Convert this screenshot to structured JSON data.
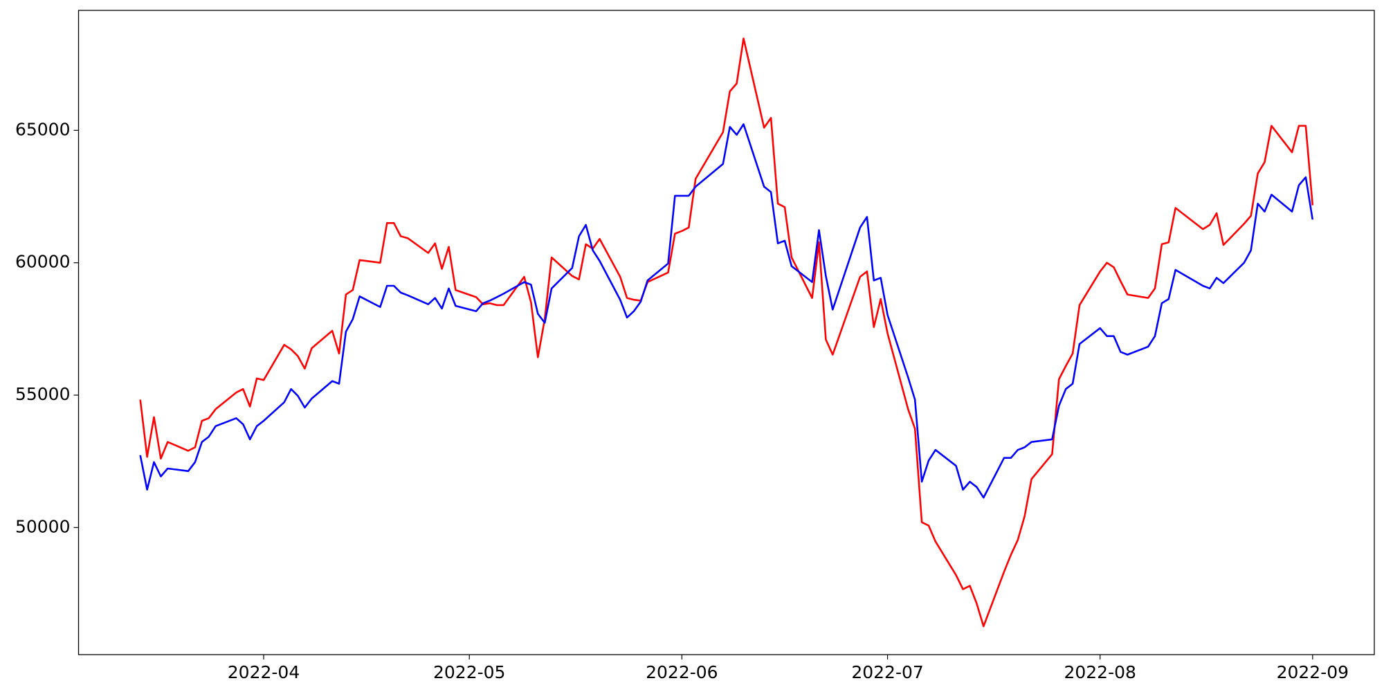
{
  "chart_data": {
    "type": "line",
    "x": [
      "2022-03-14",
      "2022-03-15",
      "2022-03-16",
      "2022-03-17",
      "2022-03-18",
      "2022-03-21",
      "2022-03-22",
      "2022-03-23",
      "2022-03-24",
      "2022-03-25",
      "2022-03-28",
      "2022-03-29",
      "2022-03-30",
      "2022-03-31",
      "2022-04-01",
      "2022-04-04",
      "2022-04-05",
      "2022-04-06",
      "2022-04-07",
      "2022-04-08",
      "2022-04-11",
      "2022-04-12",
      "2022-04-13",
      "2022-04-14",
      "2022-04-15",
      "2022-04-18",
      "2022-04-19",
      "2022-04-20",
      "2022-04-21",
      "2022-04-22",
      "2022-04-25",
      "2022-04-26",
      "2022-04-27",
      "2022-04-28",
      "2022-04-29",
      "2022-05-02",
      "2022-05-03",
      "2022-05-04",
      "2022-05-05",
      "2022-05-06",
      "2022-05-09",
      "2022-05-10",
      "2022-05-11",
      "2022-05-12",
      "2022-05-13",
      "2022-05-16",
      "2022-05-17",
      "2022-05-18",
      "2022-05-19",
      "2022-05-20",
      "2022-05-23",
      "2022-05-24",
      "2022-05-25",
      "2022-05-26",
      "2022-05-27",
      "2022-05-30",
      "2022-05-31",
      "2022-06-01",
      "2022-06-02",
      "2022-06-03",
      "2022-06-07",
      "2022-06-08",
      "2022-06-09",
      "2022-06-10",
      "2022-06-13",
      "2022-06-14",
      "2022-06-15",
      "2022-06-16",
      "2022-06-17",
      "2022-06-20",
      "2022-06-21",
      "2022-06-22",
      "2022-06-23",
      "2022-06-27",
      "2022-06-28",
      "2022-06-29",
      "2022-06-30",
      "2022-07-01",
      "2022-07-04",
      "2022-07-05",
      "2022-07-06",
      "2022-07-07",
      "2022-07-08",
      "2022-07-11",
      "2022-07-12",
      "2022-07-13",
      "2022-07-14",
      "2022-07-15",
      "2022-07-18",
      "2022-07-19",
      "2022-07-20",
      "2022-07-21",
      "2022-07-22",
      "2022-07-25",
      "2022-07-26",
      "2022-07-27",
      "2022-07-28",
      "2022-07-29",
      "2022-08-01",
      "2022-08-02",
      "2022-08-03",
      "2022-08-04",
      "2022-08-05",
      "2022-08-08",
      "2022-08-09",
      "2022-08-10",
      "2022-08-11",
      "2022-08-12",
      "2022-08-16",
      "2022-08-17",
      "2022-08-18",
      "2022-08-19",
      "2022-08-22",
      "2022-08-23",
      "2022-08-24",
      "2022-08-25",
      "2022-08-26",
      "2022-08-29",
      "2022-08-30",
      "2022-08-31",
      "2022-09-01"
    ],
    "series": [
      {
        "color": "#ff0000",
        "values": [
          54830,
          52670,
          54170,
          52600,
          53230,
          52900,
          53030,
          54030,
          54130,
          54470,
          55100,
          55230,
          54570,
          55630,
          55570,
          56900,
          56730,
          56470,
          56000,
          56770,
          57430,
          56570,
          58800,
          58970,
          60100,
          60000,
          61500,
          61500,
          61000,
          60930,
          60370,
          60730,
          59770,
          60600,
          58970,
          58700,
          58430,
          58470,
          58400,
          58400,
          59470,
          58500,
          56430,
          57870,
          60200,
          59500,
          59370,
          60700,
          60530,
          60900,
          59470,
          58670,
          58600,
          58570,
          59270,
          59630,
          61100,
          61200,
          61330,
          63170,
          64930,
          66470,
          66770,
          68470,
          65100,
          65470,
          62230,
          62100,
          60200,
          58670,
          60770,
          57100,
          56530,
          59470,
          59670,
          57570,
          58630,
          57330,
          54470,
          53730,
          50200,
          50070,
          49470,
          48200,
          47670,
          47800,
          47130,
          46270,
          48330,
          48970,
          49530,
          50430,
          51830,
          52770,
          55600,
          56100,
          56570,
          58400,
          59670,
          60000,
          59830,
          59300,
          58800,
          58670,
          59030,
          60700,
          60770,
          62070,
          61270,
          61430,
          61870,
          60670,
          61470,
          61770,
          63370,
          63800,
          65170,
          64170,
          65170,
          65170,
          62170
        ]
      },
      {
        "color": "#0000ff",
        "values": [
          52730,
          51430,
          52470,
          51930,
          52230,
          52130,
          52470,
          53230,
          53430,
          53830,
          54130,
          53900,
          53330,
          53830,
          54030,
          54730,
          55230,
          54970,
          54530,
          54870,
          55530,
          55430,
          57400,
          57870,
          58730,
          58330,
          59130,
          59130,
          58870,
          58770,
          58430,
          58670,
          58270,
          59030,
          58370,
          58170,
          58470,
          58570,
          58700,
          58830,
          59270,
          59170,
          58070,
          57730,
          59030,
          59800,
          61000,
          61430,
          60470,
          60070,
          58600,
          57930,
          58170,
          58530,
          59330,
          59970,
          62530,
          62530,
          62530,
          62870,
          63730,
          65130,
          64830,
          65230,
          62870,
          62670,
          60730,
          60830,
          59870,
          59270,
          61230,
          59500,
          58230,
          61330,
          61730,
          59330,
          59430,
          58030,
          55670,
          54830,
          51730,
          52530,
          52930,
          52330,
          51430,
          51730,
          51530,
          51130,
          52630,
          52630,
          52930,
          53030,
          53230,
          53330,
          54600,
          55230,
          55430,
          56930,
          57530,
          57230,
          57230,
          56630,
          56530,
          56830,
          57230,
          58470,
          58630,
          59730,
          59130,
          59030,
          59430,
          59230,
          60000,
          60470,
          62230,
          61930,
          62570,
          61930,
          62930,
          63230,
          61630
        ]
      }
    ],
    "xlim": [
      "2022-03-05",
      "2022-09-10"
    ],
    "xticks": [
      {
        "value": "2022-04-01",
        "label": "2022-04"
      },
      {
        "value": "2022-05-01",
        "label": "2022-05"
      },
      {
        "value": "2022-06-01",
        "label": "2022-06"
      },
      {
        "value": "2022-07-01",
        "label": "2022-07"
      },
      {
        "value": "2022-08-01",
        "label": "2022-08"
      },
      {
        "value": "2022-09-01",
        "label": "2022-09"
      }
    ],
    "ylim": [
      45200,
      69530
    ],
    "yticks": [
      50000,
      55000,
      60000,
      65000
    ]
  }
}
